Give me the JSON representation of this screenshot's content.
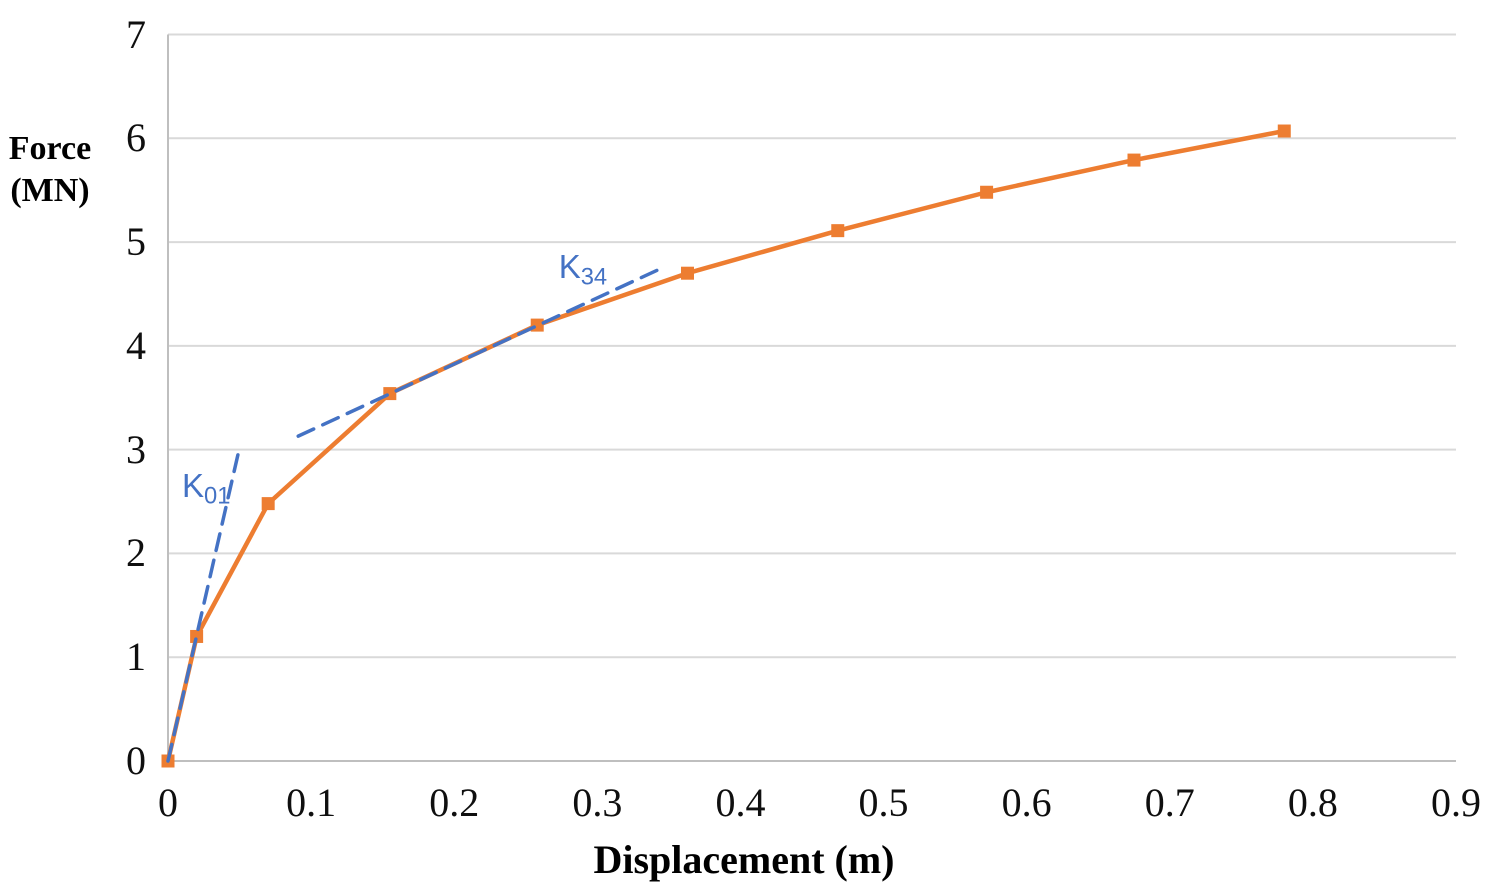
{
  "chart_data": {
    "type": "line",
    "title": "",
    "xlabel": "Displacement (m)",
    "ylabel": "Force (MN)",
    "ylabel_lines": [
      "Force",
      "(MN)"
    ],
    "xlim": [
      0,
      0.9
    ],
    "ylim": [
      0,
      7
    ],
    "xticks": [
      {
        "value": 0,
        "label": "0"
      },
      {
        "value": 0.1,
        "label": "0.1"
      },
      {
        "value": 0.2,
        "label": "0.2"
      },
      {
        "value": 0.3,
        "label": "0.3"
      },
      {
        "value": 0.4,
        "label": "0.4"
      },
      {
        "value": 0.5,
        "label": "0.5"
      },
      {
        "value": 0.6,
        "label": "0.6"
      },
      {
        "value": 0.7,
        "label": "0.7"
      },
      {
        "value": 0.8,
        "label": "0.8"
      },
      {
        "value": 0.9,
        "label": "0.9"
      }
    ],
    "yticks": [
      {
        "value": 0,
        "label": "0"
      },
      {
        "value": 1,
        "label": "1"
      },
      {
        "value": 2,
        "label": "2"
      },
      {
        "value": 3,
        "label": "3"
      },
      {
        "value": 4,
        "label": "4"
      },
      {
        "value": 5,
        "label": "5"
      },
      {
        "value": 6,
        "label": "6"
      },
      {
        "value": 7,
        "label": "7"
      }
    ],
    "grid": "horizontal",
    "legend": "none",
    "colors": {
      "series": "#ED7D31",
      "tangent": "#4472C4",
      "gridline": "#D9D9D9",
      "axis_line": "#BFBFBF",
      "text": "#0f0f0f"
    },
    "series": [
      {
        "name": "force-displacement-curve",
        "color": "#ED7D31",
        "marker": "square",
        "marker_size": 13,
        "line_width": 4.5,
        "points": [
          [
            0,
            0
          ],
          [
            0.02,
            1.2
          ],
          [
            0.07,
            2.48
          ],
          [
            0.155,
            3.54
          ],
          [
            0.258,
            4.2
          ],
          [
            0.363,
            4.7
          ],
          [
            0.468,
            5.11
          ],
          [
            0.572,
            5.48
          ],
          [
            0.675,
            5.79
          ],
          [
            0.78,
            6.07
          ]
        ]
      }
    ],
    "annotations": [
      {
        "name": "k01-tangent-line",
        "kind": "dashed-line",
        "color": "#4472C4",
        "line_width": 3.5,
        "dash": "17 10",
        "points": [
          [
            0,
            0
          ],
          [
            0.05,
            3.02
          ]
        ],
        "label_text": "K",
        "label_sub": "01",
        "label_x": 0.0098,
        "label_y": 2.81
      },
      {
        "name": "k34-tangent-line",
        "kind": "dashed-line",
        "color": "#4472C4",
        "line_width": 3.5,
        "dash": "17 10",
        "points": [
          [
            0.091,
            3.13
          ],
          [
            0.342,
            4.73
          ]
        ],
        "label_text": "K",
        "label_sub": "34",
        "label_x": 0.273,
        "label_y": 4.92
      }
    ]
  }
}
